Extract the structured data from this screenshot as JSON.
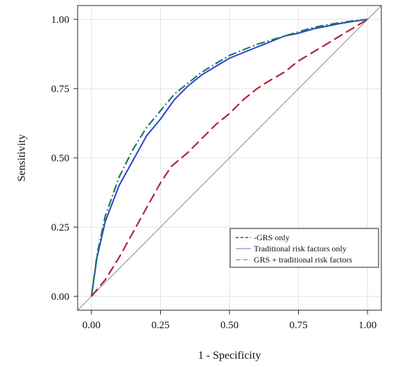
{
  "chart_data": {
    "type": "line",
    "title": "",
    "xlabel": "1 - Specificity",
    "ylabel": "Sensitivity",
    "xlim": [
      -0.05,
      1.05
    ],
    "ylim": [
      -0.05,
      1.05
    ],
    "x_ticks": [
      "0.00",
      "0.25",
      "0.50",
      "0.75",
      "1.00"
    ],
    "y_ticks": [
      "0.00",
      "0.25",
      "0.50",
      "0.75",
      "1.00"
    ],
    "grid": true,
    "legend_position": "bottom-right",
    "reference_line": {
      "x": [
        0,
        1
      ],
      "y": [
        0,
        1
      ],
      "color": "#888888"
    },
    "series": [
      {
        "name": "GRS only",
        "style": "dashed",
        "color": "#b22234",
        "x": [
          0.0,
          0.05,
          0.1,
          0.15,
          0.2,
          0.25,
          0.29,
          0.35,
          0.4,
          0.45,
          0.5,
          0.55,
          0.6,
          0.63,
          0.7,
          0.75,
          0.8,
          0.85,
          0.9,
          0.95,
          1.0
        ],
        "y": [
          0.0,
          0.06,
          0.14,
          0.23,
          0.32,
          0.41,
          0.47,
          0.52,
          0.57,
          0.62,
          0.66,
          0.71,
          0.75,
          0.77,
          0.81,
          0.85,
          0.88,
          0.91,
          0.94,
          0.97,
          1.0
        ]
      },
      {
        "name": "Traditional risk factors only",
        "style": "solid",
        "color": "#2a3fcf",
        "x": [
          0.0,
          0.02,
          0.05,
          0.1,
          0.15,
          0.2,
          0.25,
          0.3,
          0.35,
          0.4,
          0.45,
          0.5,
          0.55,
          0.6,
          0.65,
          0.7,
          0.75,
          0.8,
          0.85,
          0.9,
          0.95,
          1.0
        ],
        "y": [
          0.0,
          0.14,
          0.27,
          0.4,
          0.49,
          0.58,
          0.64,
          0.71,
          0.76,
          0.8,
          0.83,
          0.86,
          0.88,
          0.9,
          0.92,
          0.94,
          0.95,
          0.965,
          0.975,
          0.985,
          0.993,
          1.0
        ]
      },
      {
        "name": "GRS + traditional risk factors",
        "style": "dashdot",
        "color": "#1a7a5a",
        "x": [
          0.0,
          0.02,
          0.05,
          0.1,
          0.15,
          0.2,
          0.25,
          0.3,
          0.35,
          0.4,
          0.45,
          0.5,
          0.55,
          0.6,
          0.65,
          0.7,
          0.75,
          0.8,
          0.85,
          0.9,
          0.95,
          1.0
        ],
        "y": [
          0.0,
          0.15,
          0.29,
          0.43,
          0.53,
          0.61,
          0.67,
          0.73,
          0.77,
          0.81,
          0.84,
          0.87,
          0.89,
          0.91,
          0.925,
          0.94,
          0.955,
          0.97,
          0.98,
          0.988,
          0.995,
          1.0
        ]
      }
    ],
    "legend": [
      {
        "label": "-GRS only",
        "color": "#b22234",
        "style": "dashed"
      },
      {
        "label": "Traditional risk factors only",
        "color": "#9aa3e8",
        "style": "solid"
      },
      {
        "label": "GRS + traditional risk factors",
        "color": "#5aa8d8",
        "style": "dashdot"
      }
    ]
  }
}
